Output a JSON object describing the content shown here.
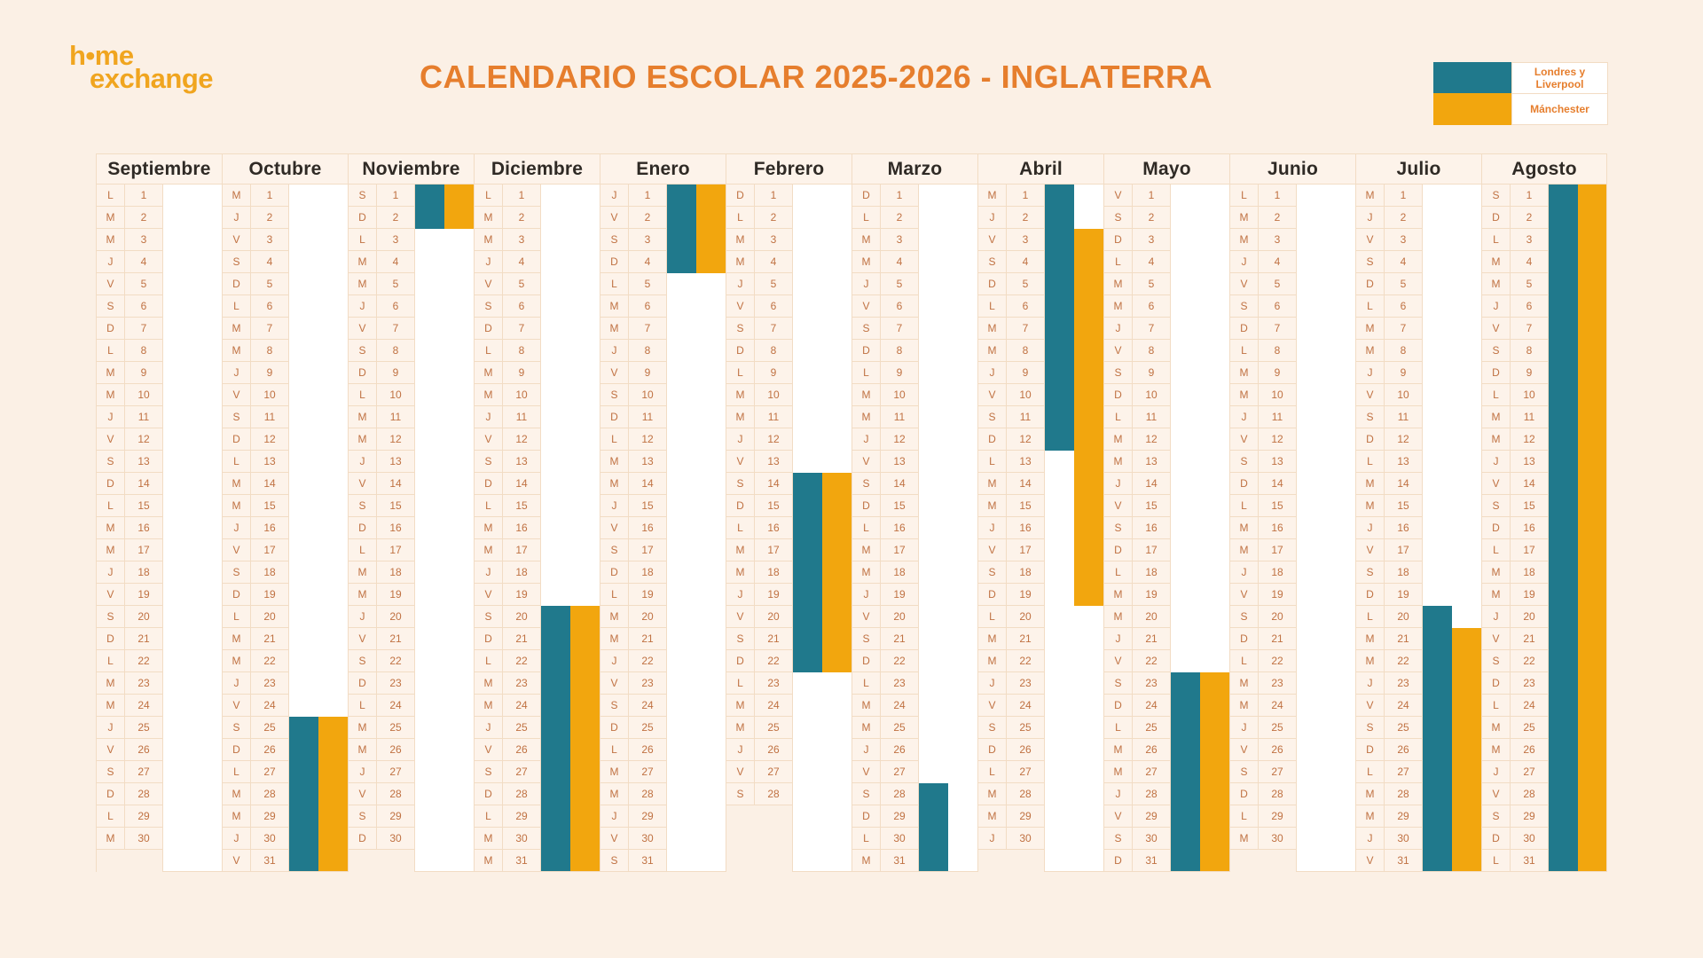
{
  "logo": {
    "line1": "h•me",
    "line2": "exchange"
  },
  "title": "CALENDARIO ESCOLAR 2025-2026 - INGLATERRA",
  "legend": {
    "items": [
      {
        "label": "Londres y Liverpool",
        "color": "#20798C"
      },
      {
        "label": "Mánchester",
        "color": "#F2A60E"
      }
    ]
  },
  "colors": {
    "teal": "#20798C",
    "orange": "#F2A60E",
    "title_text": "#E67E2D",
    "logo_text": "#F0A51F",
    "day_text": "#C07243",
    "grid_border": "#F2DCC4",
    "page_background": "#FBF0E5",
    "cell_background": "#FDF3EA",
    "bar_area_background": "#FFFFFF",
    "month_header_text": "#2F2A25"
  },
  "day_letters": [
    "L",
    "M",
    "M",
    "J",
    "V",
    "S",
    "D"
  ],
  "months": [
    {
      "name": "Septiembre",
      "days": 30,
      "first_day_index": 0,
      "bars": {
        "londres_liverpool": null,
        "manchester": null
      }
    },
    {
      "name": "Octubre",
      "days": 31,
      "first_day_index": 2,
      "bars": {
        "londres_liverpool": [
          25,
          31
        ],
        "manchester": [
          25,
          31
        ]
      }
    },
    {
      "name": "Noviembre",
      "days": 30,
      "first_day_index": 5,
      "bars": {
        "londres_liverpool": [
          1,
          2
        ],
        "manchester": [
          1,
          2
        ]
      }
    },
    {
      "name": "Diciembre",
      "days": 31,
      "first_day_index": 0,
      "bars": {
        "londres_liverpool": [
          20,
          31
        ],
        "manchester": [
          20,
          31
        ]
      }
    },
    {
      "name": "Enero",
      "days": 31,
      "first_day_index": 3,
      "bars": {
        "londres_liverpool": [
          1,
          4
        ],
        "manchester": [
          1,
          4
        ]
      }
    },
    {
      "name": "Febrero",
      "days": 28,
      "first_day_index": 6,
      "bars": {
        "londres_liverpool": [
          14,
          22
        ],
        "manchester": [
          14,
          22
        ]
      }
    },
    {
      "name": "Marzo",
      "days": 31,
      "first_day_index": 6,
      "bars": {
        "londres_liverpool": [
          28,
          31
        ],
        "manchester": null
      }
    },
    {
      "name": "Abril",
      "days": 30,
      "first_day_index": 2,
      "bars": {
        "londres_liverpool": [
          1,
          12
        ],
        "manchester": [
          3,
          19
        ]
      }
    },
    {
      "name": "Mayo",
      "days": 31,
      "first_day_index": 4,
      "bars": {
        "londres_liverpool": [
          23,
          31
        ],
        "manchester": [
          23,
          31
        ]
      }
    },
    {
      "name": "Junio",
      "days": 30,
      "first_day_index": 0,
      "bars": {
        "londres_liverpool": null,
        "manchester": null
      }
    },
    {
      "name": "Julio",
      "days": 31,
      "first_day_index": 2,
      "bars": {
        "londres_liverpool": [
          20,
          31
        ],
        "manchester": [
          21,
          31
        ]
      }
    },
    {
      "name": "Agosto",
      "days": 31,
      "first_day_index": 5,
      "bars": {
        "londres_liverpool": [
          1,
          31
        ],
        "manchester": [
          1,
          31
        ]
      }
    }
  ]
}
